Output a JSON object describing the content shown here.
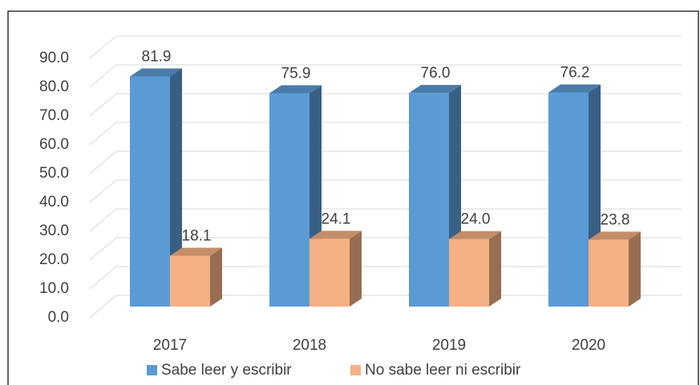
{
  "chart_data": {
    "type": "bar3d",
    "categories": [
      "2017",
      "2018",
      "2019",
      "2020"
    ],
    "series": [
      {
        "name": "Sabe leer y escribir",
        "color": "#5b9bd5",
        "values": [
          81.9,
          75.9,
          76.0,
          76.2
        ],
        "value_labels": [
          "81.9",
          "75.9",
          "76.0",
          "76.2"
        ]
      },
      {
        "name": "No sabe leer ni escribir",
        "color": "#f4b183",
        "values": [
          18.1,
          24.1,
          24.0,
          23.8
        ],
        "value_labels": [
          "18.1",
          "24.1",
          "24.0",
          "23.8"
        ]
      }
    ],
    "ylim": [
      0,
      90
    ],
    "yticks": [
      {
        "value": 0,
        "label": "0.0"
      },
      {
        "value": 10,
        "label": "10.0"
      },
      {
        "value": 20,
        "label": "20.0"
      },
      {
        "value": 30,
        "label": "30.0"
      },
      {
        "value": 40,
        "label": "40.0"
      },
      {
        "value": 50,
        "label": "50.0"
      },
      {
        "value": 60,
        "label": "60.0"
      },
      {
        "value": 70,
        "label": "70.0"
      },
      {
        "value": 80,
        "label": "80.0"
      },
      {
        "value": 90,
        "label": "90.0"
      }
    ],
    "grid": true,
    "legend": "bottom"
  }
}
